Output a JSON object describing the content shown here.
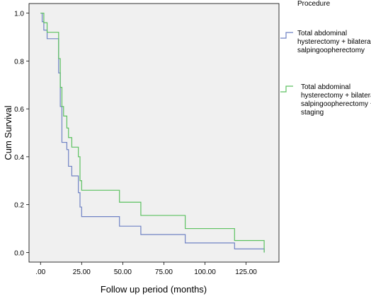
{
  "chart_data": {
    "type": "line",
    "title": "",
    "xlabel": "Follow up period (months)",
    "ylabel": "Cum Survival",
    "xlim": [
      -7,
      145
    ],
    "ylim": [
      -0.04,
      1.04
    ],
    "x_ticks": [
      ".00",
      "25.00",
      "50.00",
      "75.00",
      "100.00",
      "125.00"
    ],
    "x_tick_values": [
      0,
      25,
      50,
      75,
      100,
      125
    ],
    "y_ticks": [
      "0.0",
      "0.2",
      "0.4",
      "0.6",
      "0.8",
      "1.0"
    ],
    "y_tick_values": [
      0,
      0.2,
      0.4,
      0.6,
      0.8,
      1.0
    ],
    "grid": false,
    "legend_title": "Procedure",
    "legend_position": "right",
    "series": [
      {
        "name_lines": [
          "Total abdominal",
          "hysterectomy + bilateral",
          "salpingoopherectomy"
        ],
        "color": "#6f82c4",
        "step_x": [
          0,
          1,
          2,
          4,
          11,
          12,
          13,
          14,
          16,
          17,
          19,
          23,
          24,
          25,
          48,
          61,
          88,
          118,
          136
        ],
        "step_y": [
          1.0,
          0.964,
          0.929,
          0.893,
          0.75,
          0.61,
          0.46,
          0.46,
          0.43,
          0.36,
          0.32,
          0.25,
          0.19,
          0.15,
          0.11,
          0.075,
          0.04,
          0.015,
          0.0
        ]
      },
      {
        "name_lines": [
          "Total abdominal",
          "hysterectomy + bilateral",
          "salpingoopherectomy +",
          "staging"
        ],
        "color": "#5cc160",
        "step_x": [
          0,
          2,
          4,
          11,
          12,
          13,
          14,
          16,
          17,
          19,
          23,
          24,
          25,
          48,
          61,
          88,
          118,
          136
        ],
        "step_y": [
          1.0,
          0.96,
          0.92,
          0.81,
          0.69,
          0.61,
          0.57,
          0.52,
          0.48,
          0.44,
          0.4,
          0.3,
          0.26,
          0.21,
          0.155,
          0.1,
          0.05,
          0.0
        ]
      }
    ]
  }
}
